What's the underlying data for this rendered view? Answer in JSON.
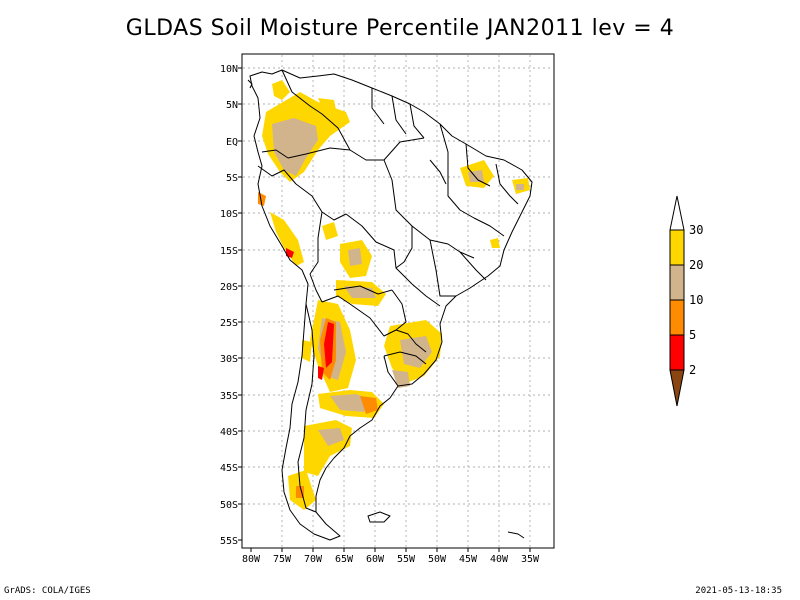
{
  "title": "GLDAS Soil Moisture Percentile JAN2011 lev = 4",
  "map": {
    "lat_labels": [
      "10N",
      "5N",
      "EQ",
      "5S",
      "10S",
      "15S",
      "20S",
      "25S",
      "30S",
      "35S",
      "40S",
      "45S",
      "50S",
      "55S"
    ],
    "lon_labels": [
      "80W",
      "75W",
      "70W",
      "65W",
      "60W",
      "55W",
      "50W",
      "45W",
      "40W",
      "35W"
    ]
  },
  "colorbar": {
    "labels": [
      "30",
      "20",
      "10",
      "5",
      "2"
    ],
    "colors": {
      "above30": "#ffffff",
      "c20_30": "#ffd700",
      "c10_20": "#d2b48c",
      "c5_10": "#ff8c00",
      "c2_5": "#ff0000",
      "below2": "#8b4513"
    }
  },
  "footer": {
    "left": "GrADS: COLA/IGES",
    "right": "2021-05-13-18:35"
  }
}
